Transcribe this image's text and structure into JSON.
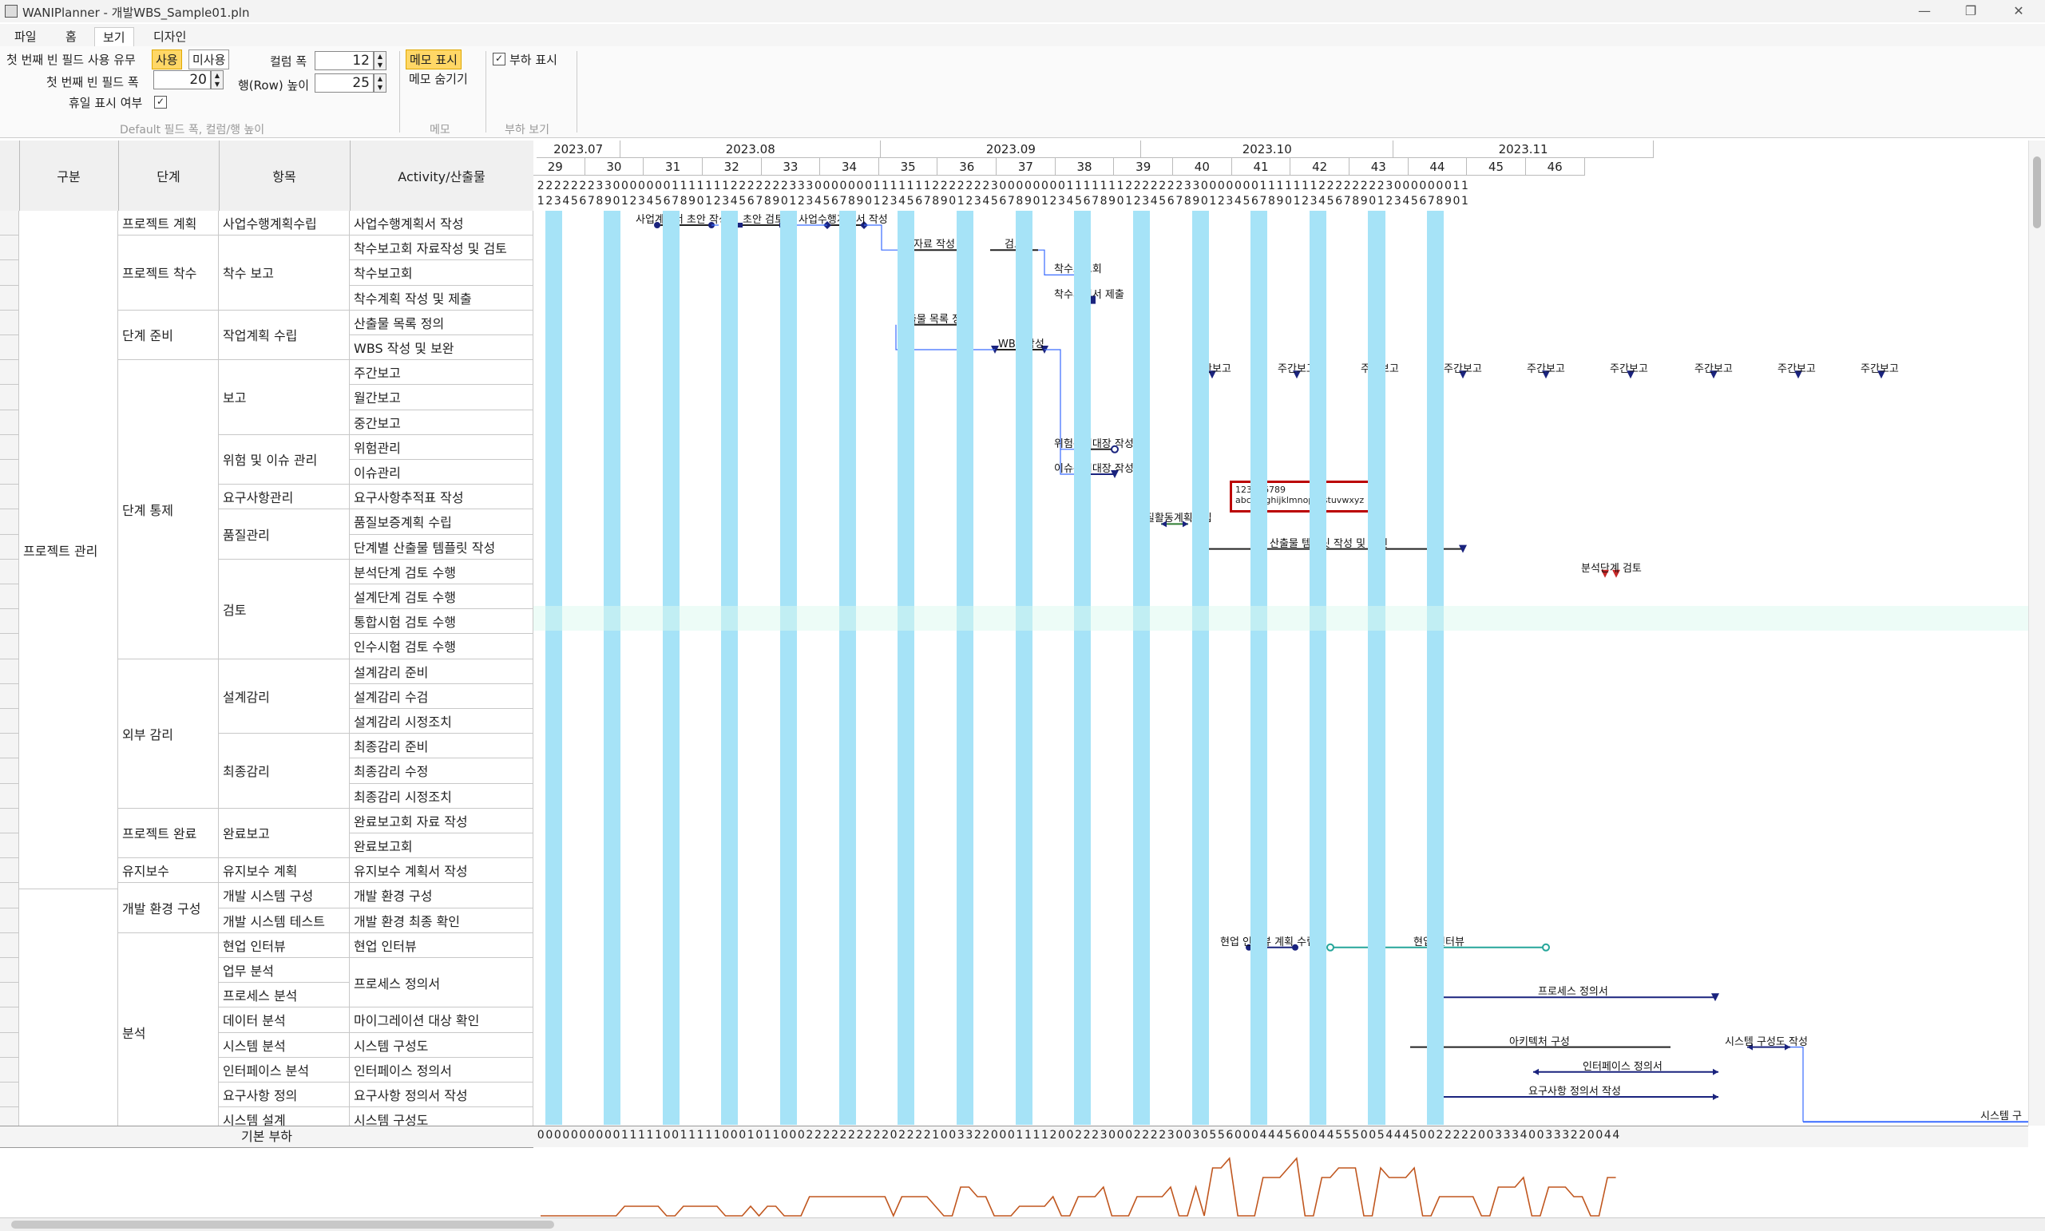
{
  "window": {
    "title": "WANIPlanner - 개발WBS_Sample01.pln"
  },
  "menu_tabs": [
    "파일",
    "홈",
    "보기",
    "디자인"
  ],
  "ribbon": {
    "first_blank_use_label": "첫 번째 빈 필드 사용 유무",
    "use_btn": "사용",
    "nouse_btn": "미사용",
    "first_blank_width_label": "첫 번째 빈 필드 폭",
    "first_blank_width_value": "20",
    "holiday_label": "휴일 표시 여부",
    "column_width_label": "컬럼 폭",
    "column_width_value": "12",
    "row_height_label": "행(Row) 높이",
    "row_height_value": "25",
    "group1_name": "Default 필드 폭, 컬럼/행 높이",
    "memo_show": "메모 표시",
    "memo_hide": "메모 숨기기",
    "group2_name": "메모",
    "load_show": "부하 표시",
    "group3_name": "부하 보기"
  },
  "headers": {
    "c0": "구분",
    "c1": "단계",
    "c2": "항목",
    "c3": "Activity/산출물"
  },
  "months": [
    "2023.07",
    "2023.08",
    "2023.09",
    "2023.10",
    "2023.11"
  ],
  "weeks": [
    "29",
    "30",
    "31",
    "32",
    "33",
    "34",
    "35",
    "36",
    "37",
    "38",
    "39",
    "40",
    "41",
    "42",
    "43",
    "44",
    "45",
    "46"
  ],
  "day_tens": "222222233000000011111112222222333000000011111112222222300000000111111122222223300000001111111222222223000000011",
  "day_ones": "123456789012345678901234567890123456789012345678901234567890123456789012345678901234567890123456789012345678901",
  "rows": [
    {
      "c1": "프로젝트 계획",
      "c2": "사업수행계획수립",
      "c3": "사업수행계획서 작성"
    },
    {
      "c1": "프로젝트 착수",
      "c2": "착수 보고",
      "c3": "착수보고회 자료작성 및 검토"
    },
    {
      "c3": "착수보고회"
    },
    {
      "c3": "착수계획 작성 및 제출"
    },
    {
      "c1": "단계 준비",
      "c2": "작업계획 수립",
      "c3": "산출물 목록 정의"
    },
    {
      "c3": "WBS 작성 및 보완"
    },
    {
      "c1": "단계 통제",
      "c2": "보고",
      "c3": "주간보고"
    },
    {
      "c3": "월간보고"
    },
    {
      "c3": "중간보고"
    },
    {
      "c2": "위험 및 이슈 관리",
      "c3": "위험관리"
    },
    {
      "c3": "이슈관리"
    },
    {
      "c2": "요구사항관리",
      "c3": "요구사항추적표 작성"
    },
    {
      "c2": "품질관리",
      "c3": "품질보증계획 수립"
    },
    {
      "c3": "단계별 산출물 템플릿 작성"
    },
    {
      "c2": "검토",
      "c3": "분석단계 검토 수행"
    },
    {
      "c3": "설계단계 검토 수행"
    },
    {
      "c3": "통합시험 검토 수행"
    },
    {
      "c3": "인수시험 검토 수행"
    },
    {
      "c1": "외부 감리",
      "c2": "설계감리",
      "c3": "설계감리 준비"
    },
    {
      "c3": "설계감리 수검"
    },
    {
      "c3": "설계감리 시정조치"
    },
    {
      "c2": "최종감리",
      "c3": "최종감리 준비"
    },
    {
      "c3": "최종감리 수정"
    },
    {
      "c3": "최종감리 시정조치"
    },
    {
      "c1": "프로젝트 완료",
      "c2": "완료보고",
      "c3": "완료보고회 자료 작성"
    },
    {
      "c3": "완료보고회"
    },
    {
      "c1": "유지보수",
      "c2": "유지보수 계획",
      "c3": "유지보수 계획서 작성"
    },
    {
      "c1": "개발 환경 구성",
      "c2": "개발 시스템 구성",
      "c3": "개발 환경 구성"
    },
    {
      "c2": "개발 시스템 테스트",
      "c3": "개발 환경 최종 확인"
    },
    {
      "c1": "분석",
      "c2": "현업 인터뷰",
      "c3": "현업 인터뷰"
    },
    {
      "c2": "업무 분석",
      "c3": "프로세스 정의서"
    },
    {
      "c2": "프로세스 분석"
    },
    {
      "c2": "데이터 분석",
      "c3": "마이그레이션 대상 확인"
    },
    {
      "c2": "시스템 분석",
      "c3": "시스템 구성도"
    },
    {
      "c2": "인터페이스 분석",
      "c3": "인터페이스 정의서"
    },
    {
      "c2": "요구사항 정의",
      "c3": "요구사항 정의서 작성"
    },
    {
      "c2": "시스템 설계",
      "c3": "시스템 구성도"
    }
  ],
  "group_labels": {
    "g0": "프로젝트 관리"
  },
  "task_labels": {
    "t1": "사업계획서 초안 작성",
    "t2": "초안 검토",
    "t3": "사업수행계획서 작성",
    "t4": "자료 작성",
    "t5": "검토",
    "t6": "착수보고회",
    "t7": "착수계획서 제출",
    "t8": "산출물 목록 정의",
    "t9": "WBS 작성",
    "t10": "위험관리대장 작성",
    "t11": "이슈관리대장 작성",
    "t12": "품질활동계획수립",
    "t13": "산출물 템플릿 작성 및 확인",
    "t14": "분석단계 검토",
    "t15": "현업 인터뷰 계획 수립",
    "t16": "현업 인터뷰",
    "t17": "프로세스 정의서",
    "t18": "아키텍처 구성",
    "t19": "시스템 구성도 작성",
    "t20": "인터페이스 정의서",
    "t21": "요구사항 정의서 작성",
    "t22": "시스템 구"
  },
  "weekly_report_label": "주간보고",
  "memo": {
    "line1": "123456789",
    "line2": "abcdefghijklmnopqrstuvwxyz"
  },
  "load_label": "기본 부하",
  "load_values": "000000000011111001111100010110002222222222022221003322000111120022230002222300305560004445600445550054445002222200333400333220044"
}
